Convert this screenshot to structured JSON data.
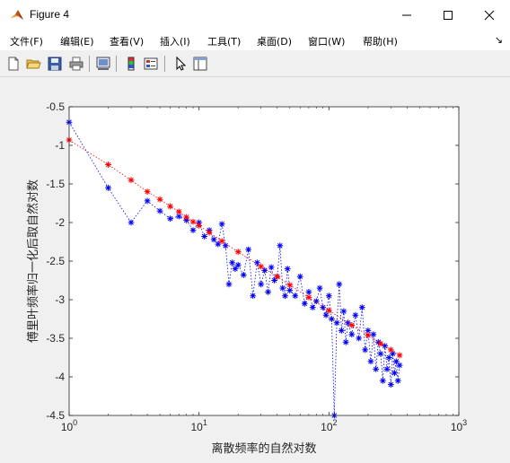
{
  "window": {
    "title": "Figure 4",
    "icon": "matlab-icon",
    "controls": [
      "minimize-icon",
      "maximize-icon",
      "close-icon"
    ]
  },
  "menu": {
    "items": [
      {
        "label": "文件(F)"
      },
      {
        "label": "编辑(E)"
      },
      {
        "label": "查看(V)"
      },
      {
        "label": "插入(I)"
      },
      {
        "label": "工具(T)"
      },
      {
        "label": "桌面(D)"
      },
      {
        "label": "窗口(W)"
      },
      {
        "label": "帮助(H)"
      }
    ],
    "overflow_arrow": "↘"
  },
  "toolbar": {
    "icons": [
      "new-figure-icon",
      "open-file-icon",
      "save-icon",
      "print-icon",
      "link-plot-icon",
      "colorbar-icon",
      "legend-icon",
      "pointer-icon",
      "property-editor-icon"
    ]
  },
  "colors": {
    "blue_series": "#0000ff",
    "red_series": "#ff0000",
    "plot_background": "#ffffff",
    "figure_background": "#f0f0f0"
  },
  "chart_data": {
    "type": "scatter",
    "title": "",
    "xlabel": "离散频率的自然对数",
    "ylabel": "傅里叶频率归一化后取自然对数",
    "xscale": "log",
    "xlim": [
      1,
      1000
    ],
    "ylim": [
      -4.5,
      -0.5
    ],
    "xticks": [
      1,
      10,
      100,
      1000
    ],
    "xtick_labels": [
      {
        "base": "10",
        "exp": "0"
      },
      {
        "base": "10",
        "exp": "1"
      },
      {
        "base": "10",
        "exp": "2"
      },
      {
        "base": "10",
        "exp": "3"
      }
    ],
    "yticks": [
      -4.5,
      -4,
      -3.5,
      -3,
      -2.5,
      -2,
      -1.5,
      -1,
      -0.5
    ],
    "ytick_labels": [
      "-4.5",
      "-4",
      "-3.5",
      "-3",
      "-2.5",
      "-2",
      "-1.5",
      "-1",
      "-0.5"
    ],
    "grid": false,
    "legend": "none",
    "series": [
      {
        "color": "#0000ff",
        "marker": "*",
        "line": "dotted",
        "points": [
          [
            1,
            -0.7
          ],
          [
            2,
            -1.55
          ],
          [
            3,
            -2.0
          ],
          [
            4,
            -1.72
          ],
          [
            5,
            -1.85
          ],
          [
            6,
            -1.95
          ],
          [
            7,
            -1.92
          ],
          [
            8,
            -1.97
          ],
          [
            9,
            -2.1
          ],
          [
            10,
            -2.0
          ],
          [
            11,
            -2.18
          ],
          [
            12,
            -2.1
          ],
          [
            13,
            -2.22
          ],
          [
            14,
            -2.28
          ],
          [
            15,
            -2.02
          ],
          [
            16,
            -2.3
          ],
          [
            17,
            -2.8
          ],
          [
            18,
            -2.52
          ],
          [
            19,
            -2.6
          ],
          [
            20,
            -2.55
          ],
          [
            22,
            -2.68
          ],
          [
            24,
            -2.35
          ],
          [
            26,
            -2.95
          ],
          [
            28,
            -2.52
          ],
          [
            30,
            -2.8
          ],
          [
            32,
            -2.62
          ],
          [
            34,
            -2.9
          ],
          [
            36,
            -2.58
          ],
          [
            38,
            -2.75
          ],
          [
            40,
            -2.7
          ],
          [
            42,
            -2.3
          ],
          [
            44,
            -2.85
          ],
          [
            46,
            -2.95
          ],
          [
            48,
            -2.6
          ],
          [
            50,
            -2.88
          ],
          [
            55,
            -2.95
          ],
          [
            60,
            -2.7
          ],
          [
            65,
            -3.05
          ],
          [
            70,
            -2.9
          ],
          [
            75,
            -3.1
          ],
          [
            80,
            -3.02
          ],
          [
            85,
            -2.85
          ],
          [
            90,
            -3.1
          ],
          [
            95,
            -3.2
          ],
          [
            100,
            -2.95
          ],
          [
            105,
            -3.25
          ],
          [
            110,
            -4.5
          ],
          [
            115,
            -3.3
          ],
          [
            120,
            -2.8
          ],
          [
            125,
            -3.4
          ],
          [
            130,
            -3.15
          ],
          [
            135,
            -3.55
          ],
          [
            140,
            -3.3
          ],
          [
            150,
            -3.45
          ],
          [
            160,
            -3.2
          ],
          [
            170,
            -3.5
          ],
          [
            180,
            -3.1
          ],
          [
            190,
            -3.65
          ],
          [
            200,
            -3.4
          ],
          [
            210,
            -3.8
          ],
          [
            220,
            -3.45
          ],
          [
            230,
            -3.9
          ],
          [
            240,
            -3.55
          ],
          [
            250,
            -3.7
          ],
          [
            260,
            -4.05
          ],
          [
            270,
            -3.6
          ],
          [
            280,
            -3.9
          ],
          [
            290,
            -3.75
          ],
          [
            300,
            -4.1
          ],
          [
            310,
            -3.7
          ],
          [
            320,
            -3.95
          ],
          [
            330,
            -3.8
          ],
          [
            340,
            -4.05
          ],
          [
            350,
            -3.85
          ]
        ]
      },
      {
        "color": "#ff0000",
        "marker": "*",
        "line": "dotted",
        "points": [
          [
            1,
            -0.93
          ],
          [
            2,
            -1.25
          ],
          [
            3,
            -1.45
          ],
          [
            4,
            -1.6
          ],
          [
            5,
            -1.7
          ],
          [
            6,
            -1.79
          ],
          [
            7,
            -1.86
          ],
          [
            8,
            -1.93
          ],
          [
            9,
            -1.99
          ],
          [
            10,
            -2.04
          ],
          [
            12,
            -2.13
          ],
          [
            15,
            -2.24
          ],
          [
            20,
            -2.38
          ],
          [
            30,
            -2.57
          ],
          [
            40,
            -2.7
          ],
          [
            50,
            -2.81
          ],
          [
            70,
            -2.97
          ],
          [
            100,
            -3.14
          ],
          [
            150,
            -3.33
          ],
          [
            200,
            -3.46
          ],
          [
            250,
            -3.57
          ],
          [
            300,
            -3.65
          ],
          [
            350,
            -3.72
          ]
        ]
      }
    ]
  }
}
